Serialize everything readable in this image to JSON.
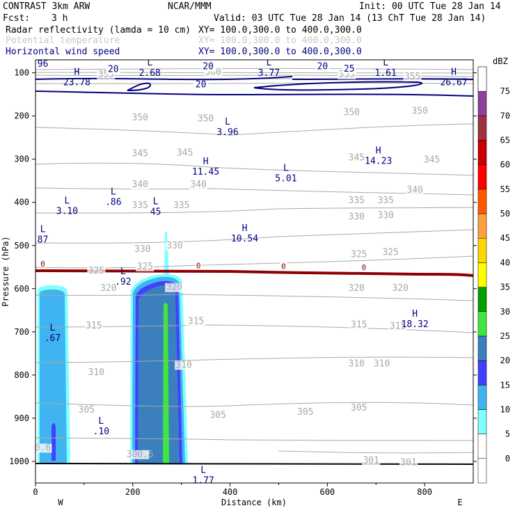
{
  "header": {
    "model": "CONTRAST  3km ARW",
    "org": "NCAR/MMM",
    "init": "Init: 00 UTC Tue 28 Jan 14",
    "fcst_label": "Fcst:",
    "fcst_value": "3 h",
    "valid": "Valid: 03 UTC Tue 28 Jan 14 (13 ChT Tue 28 Jan 14)"
  },
  "fields": [
    {
      "name": "Radar reflectivity (lamda = 10 cm)",
      "xy": "XY= 100.0,300.0 to 400.0,300.0",
      "color": "#000000"
    },
    {
      "name": "Potential temperature",
      "xy": "XY= 100.0,300.0 to 400.0,300.0",
      "color": "#c8c8c8"
    },
    {
      "name": "Horizontal wind speed",
      "xy": "XY= 100.0,300.0 to 400.0,300.0",
      "color": "#000080"
    }
  ],
  "colors": {
    "theta": "#a8a8a8",
    "wind": "#000080",
    "zero_line": "#8b0000"
  },
  "chart_data": {
    "type": "cross-section",
    "xlabel": "Distance (km)",
    "ylabel": "Pressure (hPa)",
    "xlim": [
      0,
      900
    ],
    "ylim": [
      1050,
      70
    ],
    "x_ticks": [
      0,
      200,
      400,
      600,
      800
    ],
    "y_ticks": [
      100,
      200,
      300,
      400,
      500,
      600,
      700,
      800,
      900,
      1000
    ],
    "x_end_labels": {
      "left": "W",
      "right": "E"
    },
    "colorbar": {
      "unit": "dBZ",
      "levels": [
        "0",
        "5",
        "10",
        "15",
        "20",
        "25",
        "30",
        "35",
        "40",
        "45",
        "50",
        "55",
        "60",
        "65",
        "70",
        "75"
      ],
      "colors": [
        "#ffffff",
        "#7fffff",
        "#3fb4f0",
        "#4040ff",
        "#3b7fbf",
        "#3fe63f",
        "#00a000",
        "#ffff00",
        "#ffd700",
        "#ffa040",
        "#ff5a00",
        "#ff0000",
        "#c80000",
        "#a03040",
        "#8e3f9e",
        "#c080c0"
      ]
    },
    "theta_labels": [
      {
        "text": "355",
        "x": 145,
        "p": 110
      },
      {
        "text": "360",
        "x": 365,
        "p": 105
      },
      {
        "text": "355",
        "x": 640,
        "p": 110
      },
      {
        "text": "355",
        "x": 775,
        "p": 115
      },
      {
        "text": "350",
        "x": 215,
        "p": 210
      },
      {
        "text": "350",
        "x": 350,
        "p": 213
      },
      {
        "text": "350",
        "x": 650,
        "p": 198
      },
      {
        "text": "350",
        "x": 790,
        "p": 195
      },
      {
        "text": "345",
        "x": 215,
        "p": 293
      },
      {
        "text": "345",
        "x": 307,
        "p": 292
      },
      {
        "text": "345",
        "x": 660,
        "p": 303
      },
      {
        "text": "345",
        "x": 815,
        "p": 308
      },
      {
        "text": "340",
        "x": 215,
        "p": 365
      },
      {
        "text": "340",
        "x": 335,
        "p": 365
      },
      {
        "text": "340",
        "x": 780,
        "p": 378
      },
      {
        "text": "335",
        "x": 215,
        "p": 413
      },
      {
        "text": "335",
        "x": 300,
        "p": 413
      },
      {
        "text": "335",
        "x": 660,
        "p": 402
      },
      {
        "text": "335",
        "x": 720,
        "p": 402
      },
      {
        "text": "330",
        "x": 220,
        "p": 515
      },
      {
        "text": "330",
        "x": 286,
        "p": 507
      },
      {
        "text": "330",
        "x": 660,
        "p": 440
      },
      {
        "text": "330",
        "x": 720,
        "p": 437
      },
      {
        "text": "325",
        "x": 125,
        "p": 565
      },
      {
        "text": "325",
        "x": 225,
        "p": 555
      },
      {
        "text": "325",
        "x": 665,
        "p": 527
      },
      {
        "text": "325",
        "x": 730,
        "p": 522
      },
      {
        "text": "320",
        "x": 150,
        "p": 605
      },
      {
        "text": "320",
        "x": 285,
        "p": 603
      },
      {
        "text": "320",
        "x": 660,
        "p": 605
      },
      {
        "text": "320",
        "x": 750,
        "p": 605
      },
      {
        "text": "315",
        "x": 120,
        "p": 692
      },
      {
        "text": "315",
        "x": 330,
        "p": 682
      },
      {
        "text": "315",
        "x": 665,
        "p": 690
      },
      {
        "text": "315",
        "x": 745,
        "p": 693
      },
      {
        "text": "310",
        "x": 125,
        "p": 800
      },
      {
        "text": "310",
        "x": 305,
        "p": 783
      },
      {
        "text": "310",
        "x": 660,
        "p": 780
      },
      {
        "text": "310",
        "x": 712,
        "p": 780
      },
      {
        "text": "305",
        "x": 105,
        "p": 887
      },
      {
        "text": "305",
        "x": 375,
        "p": 899
      },
      {
        "text": "305",
        "x": 555,
        "p": 892
      },
      {
        "text": "305",
        "x": 665,
        "p": 882
      },
      {
        "text": "301",
        "x": 690,
        "p": 1004
      },
      {
        "text": "301",
        "x": 767,
        "p": 1009
      },
      {
        "text": "0.6",
        "x": 15,
        "p": 975
      },
      {
        "text": "300.5",
        "x": 215,
        "p": 990
      }
    ],
    "wind_labels": [
      {
        "text": "20",
        "x": 160,
        "p": 98
      },
      {
        "text": "20",
        "x": 355,
        "p": 92
      },
      {
        "text": "20",
        "x": 590,
        "p": 92
      },
      {
        "text": "25",
        "x": 645,
        "p": 97
      },
      {
        "text": "20",
        "x": 340,
        "p": 134
      },
      {
        "text": "96",
        "x": 15,
        "p": 86
      }
    ],
    "extrema": [
      {
        "kind": "L",
        "value": "2.68",
        "x": 235,
        "p": 86
      },
      {
        "kind": "L",
        "value": "3.77",
        "x": 480,
        "p": 86
      },
      {
        "kind": "L",
        "value": "1.61",
        "x": 720,
        "p": 86
      },
      {
        "kind": "H",
        "value": "23.78",
        "x": 85,
        "p": 108
      },
      {
        "kind": "H",
        "value": "26.67",
        "x": 860,
        "p": 108
      },
      {
        "kind": "L",
        "value": "3.96",
        "x": 395,
        "p": 223
      },
      {
        "kind": "H",
        "value": "11.45",
        "x": 350,
        "p": 315
      },
      {
        "kind": "H",
        "value": "14.23",
        "x": 705,
        "p": 290
      },
      {
        "kind": "L",
        "value": "5.01",
        "x": 515,
        "p": 330
      },
      {
        "kind": "L",
        "value": ".86",
        "x": 160,
        "p": 385
      },
      {
        "kind": "L",
        "value": "3.10",
        "x": 65,
        "p": 406
      },
      {
        "kind": "L",
        "value": "45",
        "x": 247,
        "p": 408
      },
      {
        "kind": "H",
        "value": "10.54",
        "x": 430,
        "p": 470
      },
      {
        "kind": "L",
        "value": "87",
        "x": 15,
        "p": 472
      },
      {
        "kind": "L",
        "value": ".92",
        "x": 180,
        "p": 570
      },
      {
        "kind": "H",
        "value": "18.32",
        "x": 780,
        "p": 668
      },
      {
        "kind": "L",
        "value": ".67",
        "x": 35,
        "p": 700
      },
      {
        "kind": "L",
        "value": ".10",
        "x": 135,
        "p": 916
      },
      {
        "kind": "L",
        "value": "1.77",
        "x": 345,
        "p": 1030
      }
    ],
    "zero_contour_labels": [
      {
        "text": "0",
        "x": 15,
        "p": 542
      },
      {
        "text": "0",
        "x": 335,
        "p": 546
      },
      {
        "text": "0",
        "x": 510,
        "p": 548
      },
      {
        "text": "0",
        "x": 675,
        "p": 550
      }
    ]
  }
}
